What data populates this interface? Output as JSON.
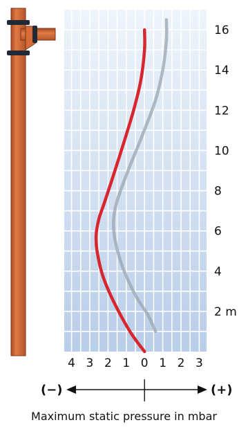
{
  "chart_data": {
    "type": "line",
    "xlabel": "Maximum static pressure in mbar",
    "ylabel": "",
    "x_ticks": [
      "4",
      "3",
      "2",
      "1",
      "0",
      "1",
      "2",
      "3"
    ],
    "x_tick_values": [
      -4,
      -3,
      -2,
      -1,
      0,
      1,
      2,
      3
    ],
    "y_ticks": [
      "2 m",
      "4",
      "6",
      "8",
      "10",
      "12",
      "14",
      "16"
    ],
    "y_tick_values": [
      2,
      4,
      6,
      8,
      10,
      12,
      14,
      16
    ],
    "xlim": [
      -4.4,
      3.4
    ],
    "ylim": [
      0,
      17
    ],
    "negative_label": "(−)",
    "positive_label": "(+)",
    "grid": true,
    "series": [
      {
        "color": "#d7262e",
        "points": [
          [
            0,
            0
          ],
          [
            -0.8,
            1
          ],
          [
            -1.7,
            2.5
          ],
          [
            -2.3,
            3.8
          ],
          [
            -2.6,
            5
          ],
          [
            -2.65,
            5.8
          ],
          [
            -2.5,
            6.6
          ],
          [
            -2.2,
            7.4
          ],
          [
            -1.8,
            8.5
          ],
          [
            -1.2,
            10.2
          ],
          [
            -0.6,
            12
          ],
          [
            -0.2,
            13.5
          ],
          [
            0,
            15
          ],
          [
            0,
            16
          ]
        ]
      },
      {
        "color": "#9aa4af",
        "points": [
          [
            0.6,
            1
          ],
          [
            0.2,
            1.8
          ],
          [
            -0.5,
            2.8
          ],
          [
            -1.2,
            4.2
          ],
          [
            -1.6,
            5.5
          ],
          [
            -1.7,
            6.5
          ],
          [
            -1.5,
            7.5
          ],
          [
            -0.9,
            9
          ],
          [
            -0.1,
            10.8
          ],
          [
            0.6,
            12.5
          ],
          [
            1,
            14
          ],
          [
            1.2,
            15.5
          ],
          [
            1.2,
            16.5
          ]
        ]
      }
    ]
  }
}
